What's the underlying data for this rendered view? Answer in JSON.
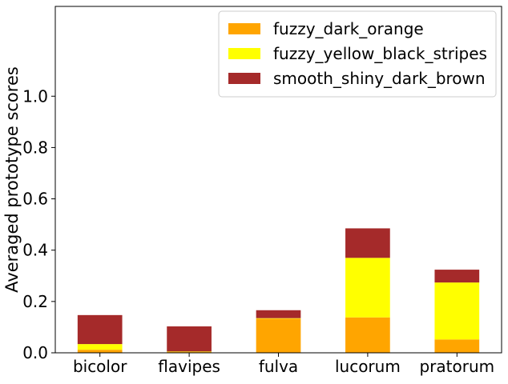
{
  "chart_data": {
    "type": "bar",
    "stacked": true,
    "title": "",
    "xlabel": "",
    "ylabel": "Averaged prototype scores",
    "ylim": [
      0,
      1.35
    ],
    "yticks": [
      0.0,
      0.2,
      0.4,
      0.6,
      0.8,
      1.0
    ],
    "ytick_labels": [
      "0.0",
      "0.2",
      "0.4",
      "0.6",
      "0.8",
      "1.0"
    ],
    "grid": false,
    "legend_position": "top-right",
    "categories": [
      "bicolor",
      "flavipes",
      "fulva",
      "lucorum",
      "pratorum"
    ],
    "series": [
      {
        "name": "fuzzy_dark_orange",
        "color": "#ffa500",
        "values": [
          0.012,
          0.003,
          0.133,
          0.138,
          0.052
        ]
      },
      {
        "name": "fuzzy_yellow_black_stripes",
        "color": "#ffff00",
        "values": [
          0.022,
          0.002,
          0.002,
          0.232,
          0.222
        ]
      },
      {
        "name": "smooth_shiny_dark_brown",
        "color": "#a52a2a",
        "values": [
          0.113,
          0.098,
          0.031,
          0.115,
          0.05
        ]
      }
    ]
  }
}
